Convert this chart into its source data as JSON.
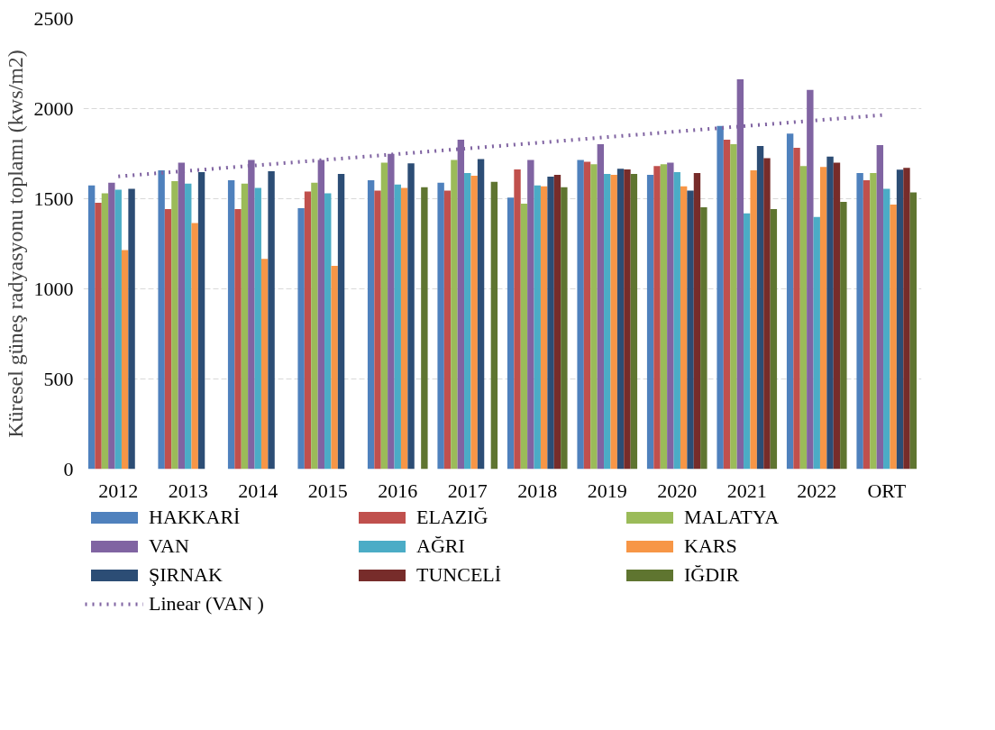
{
  "chart_data": {
    "type": "bar",
    "ylabel": "Küresel güneş radyasyonu toplamı (kws/m2)",
    "categories": [
      "2012",
      "2013",
      "2014",
      "2015",
      "2016",
      "2017",
      "2018",
      "2019",
      "2020",
      "2021",
      "2022",
      "ORT"
    ],
    "ylim": [
      0,
      2500
    ],
    "yticks": [
      0,
      500,
      1000,
      1500,
      2000,
      2500
    ],
    "grid": "y",
    "legend": "bottom",
    "series": [
      {
        "name": "HAKKARİ",
        "color": "#4f81bd",
        "values": [
          1574,
          1657,
          1603,
          1448,
          1603,
          1589,
          1506,
          1715,
          1632,
          1904,
          1861,
          1642
        ]
      },
      {
        "name": "ELAZIĞ",
        "color": "#c0504d",
        "values": [
          1477,
          1443,
          1443,
          1540,
          1545,
          1545,
          1662,
          1705,
          1681,
          1827,
          1783,
          1603
        ]
      },
      {
        "name": "MALATYA",
        "color": "#9bbb59",
        "values": [
          1530,
          1598,
          1584,
          1589,
          1700,
          1715,
          1472,
          1691,
          1691,
          1802,
          1681,
          1642
        ]
      },
      {
        "name": "VAN",
        "color": "#8064a2",
        "values": [
          1589,
          1700,
          1715,
          1715,
          1749,
          1827,
          1715,
          1802,
          1700,
          2162,
          2104,
          1798
        ]
      },
      {
        "name": "AĞRI",
        "color": "#4bacc6",
        "values": [
          1550,
          1584,
          1560,
          1530,
          1579,
          1642,
          1574,
          1637,
          1647,
          1419,
          1399,
          1555
        ]
      },
      {
        "name": "KARS",
        "color": "#f79646",
        "values": [
          1215,
          1365,
          1166,
          1127,
          1560,
          1627,
          1569,
          1632,
          1569,
          1657,
          1676,
          1467
        ]
      },
      {
        "name": "ŞIRNAK",
        "color": "#2c4d75",
        "values": [
          1555,
          1647,
          1652,
          1637,
          1696,
          1720,
          1623,
          1666,
          1545,
          1793,
          1734,
          1661
        ]
      },
      {
        "name": "TUNCELİ",
        "color": "#772c2a",
        "values": [
          null,
          null,
          null,
          null,
          null,
          null,
          1632,
          1662,
          1642,
          1725,
          1700,
          1671
        ]
      },
      {
        "name": "IĞDIR",
        "color": "#5f7530",
        "values": [
          null,
          null,
          null,
          null,
          1564,
          1594,
          1564,
          1637,
          1453,
          1443,
          1482,
          1535
        ]
      },
      {
        "name": "Linear (VAN )",
        "type": "line",
        "color": "#8064a2",
        "line_style": "dotted",
        "marker": "none",
        "values": [
          1624,
          1655,
          1686,
          1717,
          1748,
          1779,
          1810,
          1842,
          1873,
          1904,
          1935,
          1966
        ]
      }
    ]
  }
}
